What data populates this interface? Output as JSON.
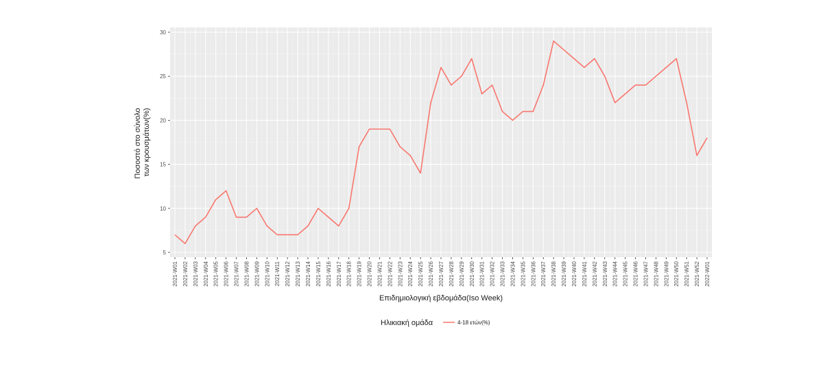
{
  "chart_data": {
    "type": "line",
    "xlabel": "Επιδημιολογική εβδομάδα(Iso Week)",
    "ylabel_lines": [
      "Ποσοστό στο σύνολο",
      "των κρουσμάτων(%)"
    ],
    "ylim": [
      5,
      30
    ],
    "yticks": [
      5,
      10,
      15,
      20,
      25,
      30
    ],
    "grid": true,
    "legend": {
      "title": "Ηλικιακή ομάδα",
      "placement": "bottom"
    },
    "categories": [
      "2021-W01",
      "2021-W02",
      "2021-W03",
      "2021-W04",
      "2021-W05",
      "2021-W06",
      "2021-W07",
      "2021-W08",
      "2021-W09",
      "2021-W10",
      "2021-W11",
      "2021-W12",
      "2021-W13",
      "2021-W14",
      "2021-W15",
      "2021-W16",
      "2021-W17",
      "2021-W18",
      "2021-W19",
      "2021-W20",
      "2021-W21",
      "2021-W22",
      "2021-W23",
      "2021-W24",
      "2021-W25",
      "2021-W26",
      "2021-W27",
      "2021-W28",
      "2021-W29",
      "2021-W30",
      "2021-W31",
      "2021-W32",
      "2021-W33",
      "2021-W34",
      "2021-W35",
      "2021-W36",
      "2021-W37",
      "2021-W38",
      "2021-W39",
      "2021-W40",
      "2021-W41",
      "2021-W42",
      "2021-W43",
      "2021-W44",
      "2021-W45",
      "2021-W46",
      "2021-W47",
      "2021-W48",
      "2021-W49",
      "2021-W50",
      "2021-W51",
      "2021-W52",
      "2022-W01"
    ],
    "series": [
      {
        "name": "4-18 ετών(%)",
        "color": "#f8766d",
        "values": [
          7,
          6,
          8,
          9,
          11,
          12,
          9,
          9,
          10,
          8,
          7,
          7,
          7,
          8,
          10,
          9,
          8,
          10,
          17,
          19,
          19,
          19,
          17,
          16,
          14,
          22,
          26,
          24,
          25,
          27,
          23,
          24,
          21,
          20,
          21,
          21,
          24,
          29,
          28,
          27,
          26,
          27,
          25,
          22,
          23,
          24,
          24,
          25,
          26,
          27,
          22,
          16,
          18
        ]
      }
    ]
  }
}
